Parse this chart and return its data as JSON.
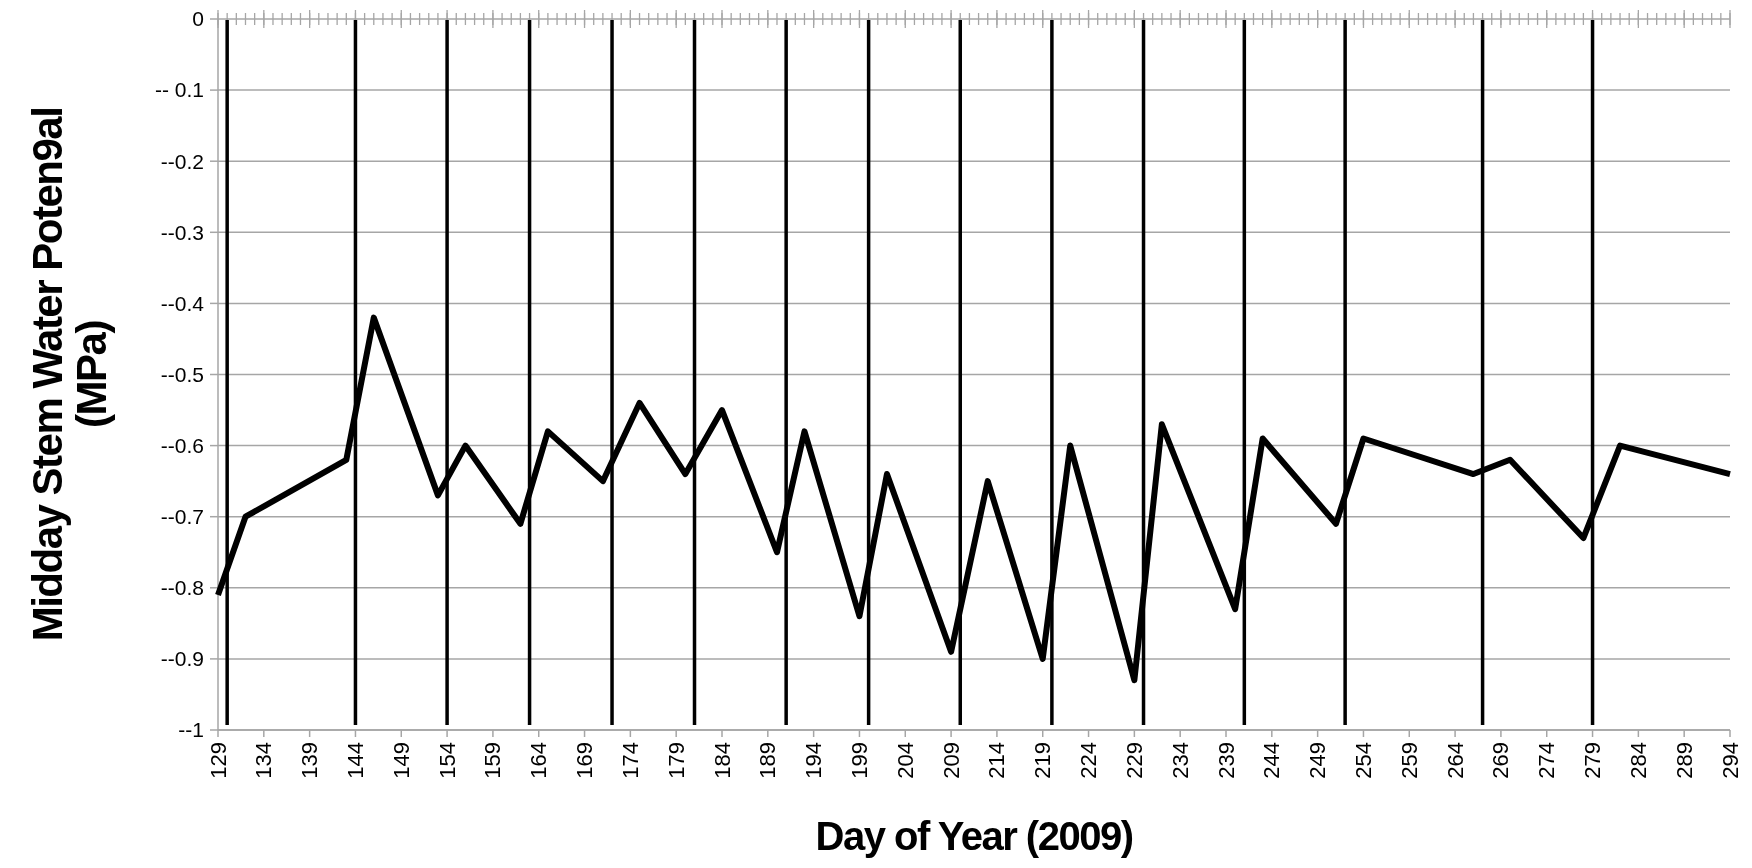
{
  "chart_data": {
    "type": "line",
    "xlabel": "Day of Year (2009)",
    "ylabel": "Midday Stem Water Poten9al\n(MPa)",
    "x": [
      129,
      132,
      143,
      146,
      153,
      156,
      162,
      165,
      171,
      175,
      180,
      184,
      190,
      193,
      199,
      202,
      209,
      213,
      219,
      222,
      229,
      232,
      240,
      243,
      251,
      254,
      266,
      270,
      278,
      282,
      294
    ],
    "series": [
      {
        "color": "#000000",
        "values": [
          -0.81,
          -0.7,
          -0.62,
          -0.42,
          -0.67,
          -0.6,
          -0.71,
          -0.58,
          -0.65,
          -0.54,
          -0.64,
          -0.55,
          -0.75,
          -0.58,
          -0.84,
          -0.64,
          -0.89,
          -0.65,
          -0.9,
          -0.6,
          -0.93,
          -0.57,
          -0.83,
          -0.59,
          -0.71,
          -0.59,
          -0.64,
          -0.62,
          -0.73,
          -0.6,
          -0.64
        ]
      }
    ],
    "xlim": [
      129,
      294
    ],
    "xticks": [
      129,
      134,
      139,
      144,
      149,
      154,
      159,
      164,
      169,
      174,
      179,
      184,
      189,
      194,
      199,
      204,
      209,
      214,
      219,
      224,
      229,
      234,
      239,
      244,
      249,
      254,
      259,
      264,
      269,
      274,
      279,
      284,
      289,
      294
    ],
    "ylim": [
      -1,
      0
    ],
    "yticks": [
      {
        "value": 0,
        "label": "0"
      },
      {
        "value": -0.1,
        "label": "-- 0.1"
      },
      {
        "value": -0.2,
        "label": "--0.2"
      },
      {
        "value": -0.3,
        "label": "--0.3"
      },
      {
        "value": -0.4,
        "label": "--0.4"
      },
      {
        "value": -0.5,
        "label": "--0.5"
      },
      {
        "value": -0.6,
        "label": "--0.6"
      },
      {
        "value": -0.7,
        "label": "--0.7"
      },
      {
        "value": -0.8,
        "label": "--0.8"
      },
      {
        "value": -0.9,
        "label": "--0.9"
      },
      {
        "value": -1,
        "label": "--1"
      }
    ],
    "grid": "y",
    "line_style": "solid",
    "marker": "none",
    "ref_lines": [
      {
        "axis": "x",
        "value": 130,
        "color": "#000000"
      },
      {
        "axis": "x",
        "value": 144,
        "color": "#000000"
      },
      {
        "axis": "x",
        "value": 154,
        "color": "#000000"
      },
      {
        "axis": "x",
        "value": 163,
        "color": "#000000"
      },
      {
        "axis": "x",
        "value": 172,
        "color": "#000000"
      },
      {
        "axis": "x",
        "value": 181,
        "color": "#000000"
      },
      {
        "axis": "x",
        "value": 191,
        "color": "#000000"
      },
      {
        "axis": "x",
        "value": 200,
        "color": "#000000"
      },
      {
        "axis": "x",
        "value": 210,
        "color": "#000000"
      },
      {
        "axis": "x",
        "value": 220,
        "color": "#000000"
      },
      {
        "axis": "x",
        "value": 230,
        "color": "#000000"
      },
      {
        "axis": "x",
        "value": 241,
        "color": "#000000"
      },
      {
        "axis": "x",
        "value": 252,
        "color": "#000000"
      },
      {
        "axis": "x",
        "value": 267,
        "color": "#000000"
      },
      {
        "axis": "x",
        "value": 279,
        "color": "#000000"
      }
    ]
  }
}
